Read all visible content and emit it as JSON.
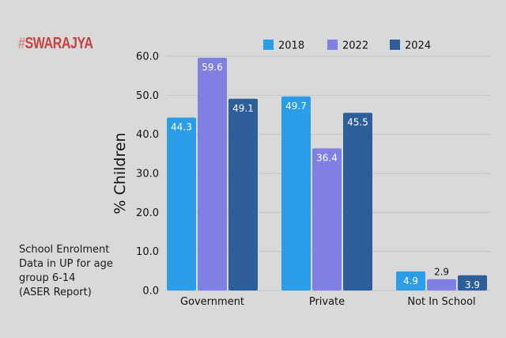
{
  "brand": {
    "hash": "#",
    "name": "SWARAJYA"
  },
  "note": [
    "School Enrolment",
    "Data in UP for age",
    "group 6-14",
    "(ASER Report)"
  ],
  "chart_data": {
    "type": "bar",
    "categories": [
      "Government",
      "Private",
      "Not In School"
    ],
    "series": [
      {
        "name": "2018",
        "color": "#2a9de6",
        "values": [
          44.3,
          49.7,
          4.9
        ]
      },
      {
        "name": "2022",
        "color": "#8080e2",
        "values": [
          59.6,
          36.4,
          2.9
        ]
      },
      {
        "name": "2024",
        "color": "#2e5e98",
        "values": [
          49.1,
          45.5,
          3.9
        ]
      }
    ],
    "ylabel": "% Children",
    "ylim": [
      0,
      60
    ],
    "yticks": [
      "0.0",
      "10.0",
      "20.0",
      "30.0",
      "40.0",
      "50.0",
      "60.0"
    ],
    "grid": true,
    "legend": "top"
  }
}
